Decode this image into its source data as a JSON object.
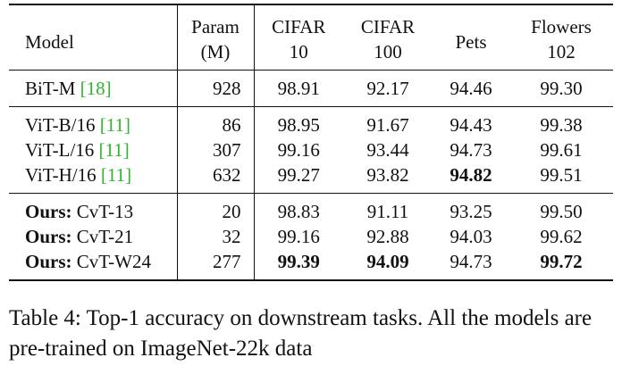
{
  "table": {
    "header": {
      "model": "Model",
      "param_l1": "Param",
      "param_l2": "(M)",
      "c10_l1": "CIFAR",
      "c10_l2": "10",
      "c100_l1": "CIFAR",
      "c100_l2": "100",
      "pets": "Pets",
      "fl_l1": "Flowers",
      "fl_l2": "102"
    },
    "groups": [
      {
        "rows": [
          {
            "ours": "",
            "model": "BiT-M ",
            "cite": "[18]",
            "param": "928",
            "c10": "98.91",
            "c100": "92.17",
            "pets": "94.46",
            "fl": "99.30"
          }
        ]
      },
      {
        "rows": [
          {
            "ours": "",
            "model": "ViT-B/16 ",
            "cite": "[11]",
            "param": "86",
            "c10": "98.95",
            "c100": "91.67",
            "pets": "94.43",
            "fl": "99.38"
          },
          {
            "ours": "",
            "model": "ViT-L/16 ",
            "cite": "[11]",
            "param": "307",
            "c10": "99.16",
            "c100": "93.44",
            "pets": "94.73",
            "fl": "99.61"
          },
          {
            "ours": "",
            "model": "ViT-H/16 ",
            "cite": "[11]",
            "param": "632",
            "c10": "99.27",
            "c100": "93.82",
            "pets": "94.82",
            "fl": "99.51",
            "bold": [
              "pets"
            ]
          }
        ]
      },
      {
        "rows": [
          {
            "ours": "Ours:",
            "model": " CvT-13",
            "cite": "",
            "param": "20",
            "c10": "98.83",
            "c100": "91.11",
            "pets": "93.25",
            "fl": "99.50"
          },
          {
            "ours": "Ours:",
            "model": " CvT-21",
            "cite": "",
            "param": "32",
            "c10": "99.16",
            "c100": "92.88",
            "pets": "94.03",
            "fl": "99.62"
          },
          {
            "ours": "Ours:",
            "model": " CvT-W24",
            "cite": "",
            "param": "277",
            "c10": "99.39",
            "c100": "94.09",
            "pets": "94.73",
            "fl": "99.72",
            "bold": [
              "c10",
              "c100",
              "fl"
            ]
          }
        ]
      }
    ]
  },
  "caption": "Table 4: Top-1 accuracy on downstream tasks. All the models are pre-trained on ImageNet-22k data"
}
